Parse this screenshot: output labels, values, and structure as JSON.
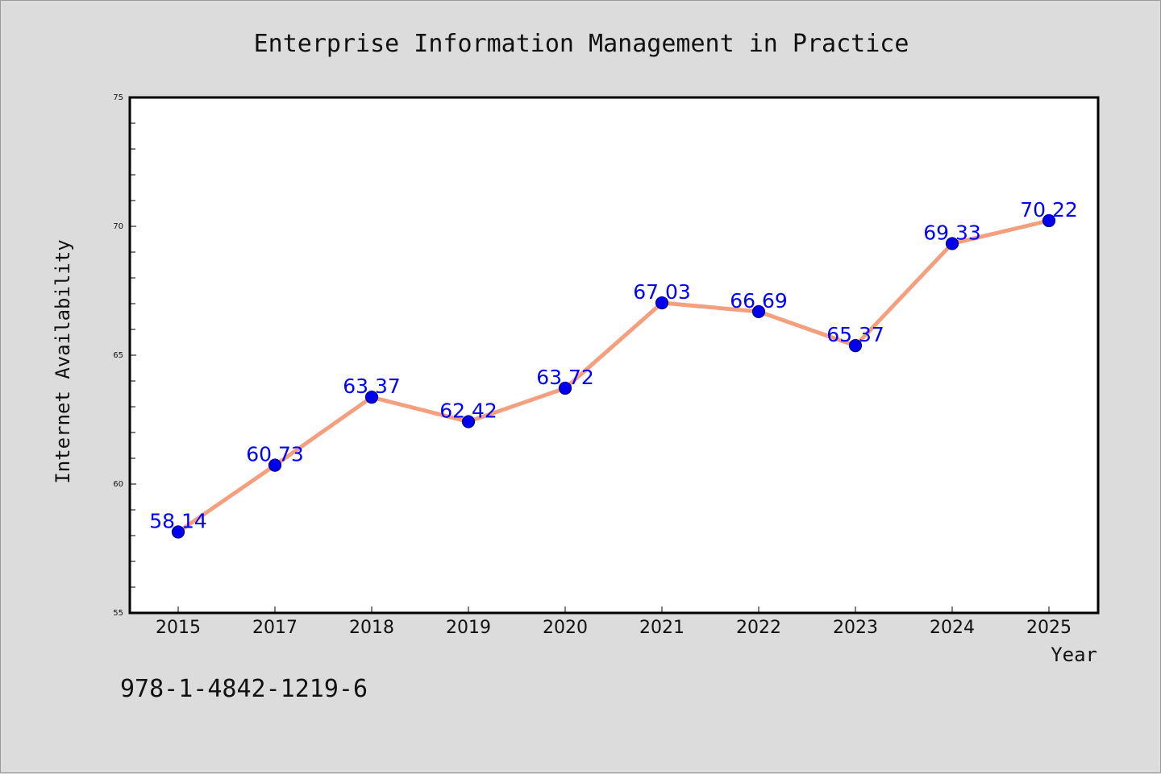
{
  "chart_data": {
    "type": "line",
    "title": "Enterprise Information Management in Practice",
    "xlabel": "Year",
    "ylabel": "Internet Availability",
    "categories": [
      "2015",
      "2017",
      "2018",
      "2019",
      "2020",
      "2021",
      "2022",
      "2023",
      "2024",
      "2025"
    ],
    "series": [
      {
        "values": [
          58.14,
          60.73,
          63.37,
          62.42,
          63.72,
          67.03,
          66.69,
          65.37,
          69.33,
          70.22
        ],
        "labels": [
          "58.14",
          "60.73",
          "63.37",
          "62.42",
          "63.72",
          "67.03",
          "66.69",
          "65.37",
          "69.33",
          "70.22"
        ]
      }
    ],
    "ylim": [
      55,
      75
    ],
    "yticks": [
      55,
      60,
      65,
      70,
      75
    ],
    "grid": false,
    "legend": "none",
    "colors": {
      "line": "#f4a07f",
      "marker_fill": "#0000ee",
      "marker_edge": "#000080",
      "label": "#0000ff",
      "plot_bg": "#ffffff",
      "page_bg": "#dcdcdc"
    }
  },
  "footer": {
    "isbn": "978-1-4842-1219-6"
  }
}
